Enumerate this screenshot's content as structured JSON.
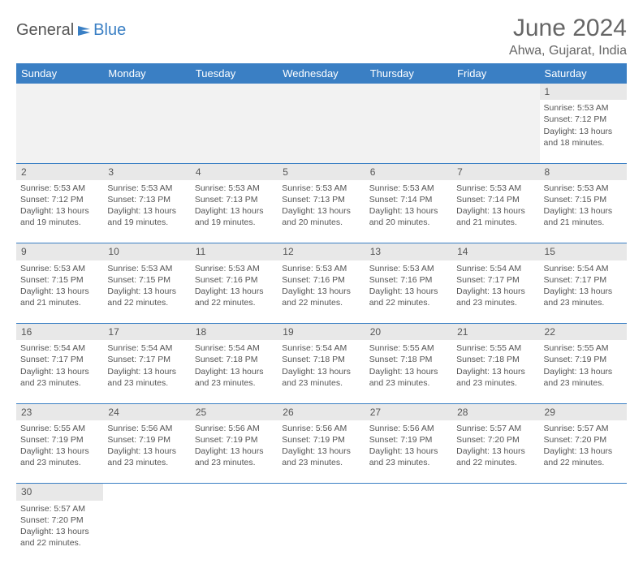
{
  "logo": {
    "text1": "General",
    "text2": "Blue"
  },
  "title": "June 2024",
  "location": "Ahwa, Gujarat, India",
  "colors": {
    "header_bg": "#3a7fc4",
    "header_text": "#ffffff",
    "daynum_bg": "#e8e8e8",
    "text": "#555555",
    "border": "#3a7fc4"
  },
  "weekdays": [
    "Sunday",
    "Monday",
    "Tuesday",
    "Wednesday",
    "Thursday",
    "Friday",
    "Saturday"
  ],
  "weeks": [
    [
      null,
      null,
      null,
      null,
      null,
      null,
      {
        "n": "1",
        "sr": "Sunrise: 5:53 AM",
        "ss": "Sunset: 7:12 PM",
        "d1": "Daylight: 13 hours",
        "d2": "and 18 minutes."
      }
    ],
    [
      {
        "n": "2",
        "sr": "Sunrise: 5:53 AM",
        "ss": "Sunset: 7:12 PM",
        "d1": "Daylight: 13 hours",
        "d2": "and 19 minutes."
      },
      {
        "n": "3",
        "sr": "Sunrise: 5:53 AM",
        "ss": "Sunset: 7:13 PM",
        "d1": "Daylight: 13 hours",
        "d2": "and 19 minutes."
      },
      {
        "n": "4",
        "sr": "Sunrise: 5:53 AM",
        "ss": "Sunset: 7:13 PM",
        "d1": "Daylight: 13 hours",
        "d2": "and 19 minutes."
      },
      {
        "n": "5",
        "sr": "Sunrise: 5:53 AM",
        "ss": "Sunset: 7:13 PM",
        "d1": "Daylight: 13 hours",
        "d2": "and 20 minutes."
      },
      {
        "n": "6",
        "sr": "Sunrise: 5:53 AM",
        "ss": "Sunset: 7:14 PM",
        "d1": "Daylight: 13 hours",
        "d2": "and 20 minutes."
      },
      {
        "n": "7",
        "sr": "Sunrise: 5:53 AM",
        "ss": "Sunset: 7:14 PM",
        "d1": "Daylight: 13 hours",
        "d2": "and 21 minutes."
      },
      {
        "n": "8",
        "sr": "Sunrise: 5:53 AM",
        "ss": "Sunset: 7:15 PM",
        "d1": "Daylight: 13 hours",
        "d2": "and 21 minutes."
      }
    ],
    [
      {
        "n": "9",
        "sr": "Sunrise: 5:53 AM",
        "ss": "Sunset: 7:15 PM",
        "d1": "Daylight: 13 hours",
        "d2": "and 21 minutes."
      },
      {
        "n": "10",
        "sr": "Sunrise: 5:53 AM",
        "ss": "Sunset: 7:15 PM",
        "d1": "Daylight: 13 hours",
        "d2": "and 22 minutes."
      },
      {
        "n": "11",
        "sr": "Sunrise: 5:53 AM",
        "ss": "Sunset: 7:16 PM",
        "d1": "Daylight: 13 hours",
        "d2": "and 22 minutes."
      },
      {
        "n": "12",
        "sr": "Sunrise: 5:53 AM",
        "ss": "Sunset: 7:16 PM",
        "d1": "Daylight: 13 hours",
        "d2": "and 22 minutes."
      },
      {
        "n": "13",
        "sr": "Sunrise: 5:53 AM",
        "ss": "Sunset: 7:16 PM",
        "d1": "Daylight: 13 hours",
        "d2": "and 22 minutes."
      },
      {
        "n": "14",
        "sr": "Sunrise: 5:54 AM",
        "ss": "Sunset: 7:17 PM",
        "d1": "Daylight: 13 hours",
        "d2": "and 23 minutes."
      },
      {
        "n": "15",
        "sr": "Sunrise: 5:54 AM",
        "ss": "Sunset: 7:17 PM",
        "d1": "Daylight: 13 hours",
        "d2": "and 23 minutes."
      }
    ],
    [
      {
        "n": "16",
        "sr": "Sunrise: 5:54 AM",
        "ss": "Sunset: 7:17 PM",
        "d1": "Daylight: 13 hours",
        "d2": "and 23 minutes."
      },
      {
        "n": "17",
        "sr": "Sunrise: 5:54 AM",
        "ss": "Sunset: 7:17 PM",
        "d1": "Daylight: 13 hours",
        "d2": "and 23 minutes."
      },
      {
        "n": "18",
        "sr": "Sunrise: 5:54 AM",
        "ss": "Sunset: 7:18 PM",
        "d1": "Daylight: 13 hours",
        "d2": "and 23 minutes."
      },
      {
        "n": "19",
        "sr": "Sunrise: 5:54 AM",
        "ss": "Sunset: 7:18 PM",
        "d1": "Daylight: 13 hours",
        "d2": "and 23 minutes."
      },
      {
        "n": "20",
        "sr": "Sunrise: 5:55 AM",
        "ss": "Sunset: 7:18 PM",
        "d1": "Daylight: 13 hours",
        "d2": "and 23 minutes."
      },
      {
        "n": "21",
        "sr": "Sunrise: 5:55 AM",
        "ss": "Sunset: 7:18 PM",
        "d1": "Daylight: 13 hours",
        "d2": "and 23 minutes."
      },
      {
        "n": "22",
        "sr": "Sunrise: 5:55 AM",
        "ss": "Sunset: 7:19 PM",
        "d1": "Daylight: 13 hours",
        "d2": "and 23 minutes."
      }
    ],
    [
      {
        "n": "23",
        "sr": "Sunrise: 5:55 AM",
        "ss": "Sunset: 7:19 PM",
        "d1": "Daylight: 13 hours",
        "d2": "and 23 minutes."
      },
      {
        "n": "24",
        "sr": "Sunrise: 5:56 AM",
        "ss": "Sunset: 7:19 PM",
        "d1": "Daylight: 13 hours",
        "d2": "and 23 minutes."
      },
      {
        "n": "25",
        "sr": "Sunrise: 5:56 AM",
        "ss": "Sunset: 7:19 PM",
        "d1": "Daylight: 13 hours",
        "d2": "and 23 minutes."
      },
      {
        "n": "26",
        "sr": "Sunrise: 5:56 AM",
        "ss": "Sunset: 7:19 PM",
        "d1": "Daylight: 13 hours",
        "d2": "and 23 minutes."
      },
      {
        "n": "27",
        "sr": "Sunrise: 5:56 AM",
        "ss": "Sunset: 7:19 PM",
        "d1": "Daylight: 13 hours",
        "d2": "and 23 minutes."
      },
      {
        "n": "28",
        "sr": "Sunrise: 5:57 AM",
        "ss": "Sunset: 7:20 PM",
        "d1": "Daylight: 13 hours",
        "d2": "and 22 minutes."
      },
      {
        "n": "29",
        "sr": "Sunrise: 5:57 AM",
        "ss": "Sunset: 7:20 PM",
        "d1": "Daylight: 13 hours",
        "d2": "and 22 minutes."
      }
    ],
    [
      {
        "n": "30",
        "sr": "Sunrise: 5:57 AM",
        "ss": "Sunset: 7:20 PM",
        "d1": "Daylight: 13 hours",
        "d2": "and 22 minutes."
      },
      null,
      null,
      null,
      null,
      null,
      null
    ]
  ]
}
